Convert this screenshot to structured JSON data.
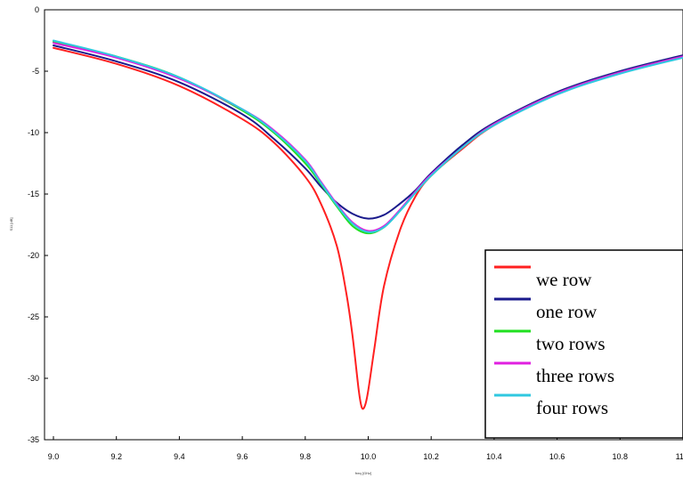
{
  "chart_data": {
    "type": "line",
    "title": "",
    "xlabel": "freq [GHz]",
    "ylabel": "S11 [dB]",
    "xlim": [
      9.0,
      11.0
    ],
    "ylim": [
      -35,
      0
    ],
    "x_ticks": [
      "9.0",
      "9.2",
      "9.4",
      "9.6",
      "9.8",
      "10.0",
      "10.2",
      "10.4",
      "10.6",
      "10.8",
      "11.0"
    ],
    "y_ticks": [
      "0",
      "-5",
      "-10",
      "-15",
      "-20",
      "-25",
      "-30",
      "-35"
    ],
    "grid": false,
    "legend_position": "bottom-right",
    "series": [
      {
        "name": "we row",
        "color": "#ff2020",
        "x": [
          9.0,
          9.2,
          9.4,
          9.6,
          9.7,
          9.8,
          9.85,
          9.9,
          9.93,
          9.95,
          9.97,
          9.98,
          9.99,
          10.0,
          10.02,
          10.05,
          10.1,
          10.15,
          10.2,
          10.3,
          10.4,
          10.6,
          10.8,
          11.0
        ],
        "values": [
          -3.1,
          -4.4,
          -6.2,
          -8.9,
          -10.8,
          -13.6,
          -15.8,
          -19.2,
          -23.0,
          -26.5,
          -31.0,
          -32.4,
          -32.2,
          -31.0,
          -27.5,
          -22.5,
          -18.0,
          -15.2,
          -13.5,
          -11.3,
          -9.4,
          -6.8,
          -5.1,
          -3.7
        ]
      },
      {
        "name": "one row",
        "color": "#1a1a8c",
        "x": [
          9.0,
          9.2,
          9.4,
          9.6,
          9.7,
          9.8,
          9.85,
          9.9,
          9.95,
          10.0,
          10.05,
          10.1,
          10.15,
          10.2,
          10.3,
          10.4,
          10.6,
          10.8,
          11.0
        ],
        "values": [
          -2.9,
          -4.2,
          -5.9,
          -8.5,
          -10.5,
          -12.9,
          -14.4,
          -15.7,
          -16.6,
          -17.0,
          -16.7,
          -15.8,
          -14.7,
          -13.3,
          -11.0,
          -9.2,
          -6.7,
          -5.0,
          -3.7
        ]
      },
      {
        "name": "two rows",
        "color": "#20e020",
        "x": [
          9.0,
          9.2,
          9.4,
          9.6,
          9.7,
          9.8,
          9.85,
          9.9,
          9.95,
          10.0,
          10.05,
          10.1,
          10.15,
          10.2,
          10.3,
          10.4,
          10.6,
          10.8,
          11.0
        ],
        "values": [
          -2.6,
          -3.8,
          -5.5,
          -8.2,
          -10.0,
          -12.5,
          -14.2,
          -16.0,
          -17.6,
          -18.2,
          -17.7,
          -16.4,
          -14.9,
          -13.5,
          -11.2,
          -9.3,
          -6.8,
          -5.1,
          -3.8
        ]
      },
      {
        "name": "three rows",
        "color": "#e020e0",
        "x": [
          9.0,
          9.2,
          9.4,
          9.6,
          9.7,
          9.8,
          9.85,
          9.9,
          9.95,
          10.0,
          10.05,
          10.1,
          10.15,
          10.2,
          10.3,
          10.4,
          10.6,
          10.8,
          11.0
        ],
        "values": [
          -2.7,
          -3.9,
          -5.6,
          -8.1,
          -9.8,
          -12.2,
          -14.0,
          -15.8,
          -17.3,
          -18.0,
          -17.6,
          -16.3,
          -14.8,
          -13.4,
          -11.2,
          -9.3,
          -6.8,
          -5.1,
          -3.8
        ]
      },
      {
        "name": "four rows",
        "color": "#30c8e0",
        "x": [
          9.0,
          9.2,
          9.4,
          9.6,
          9.7,
          9.8,
          9.85,
          9.9,
          9.95,
          10.0,
          10.05,
          10.1,
          10.15,
          10.2,
          10.3,
          10.4,
          10.6,
          10.8,
          11.0
        ],
        "values": [
          -2.5,
          -3.8,
          -5.5,
          -8.1,
          -9.9,
          -12.3,
          -14.1,
          -15.9,
          -17.4,
          -18.1,
          -17.7,
          -16.4,
          -14.9,
          -13.5,
          -11.2,
          -9.4,
          -6.9,
          -5.2,
          -3.9
        ]
      }
    ]
  }
}
